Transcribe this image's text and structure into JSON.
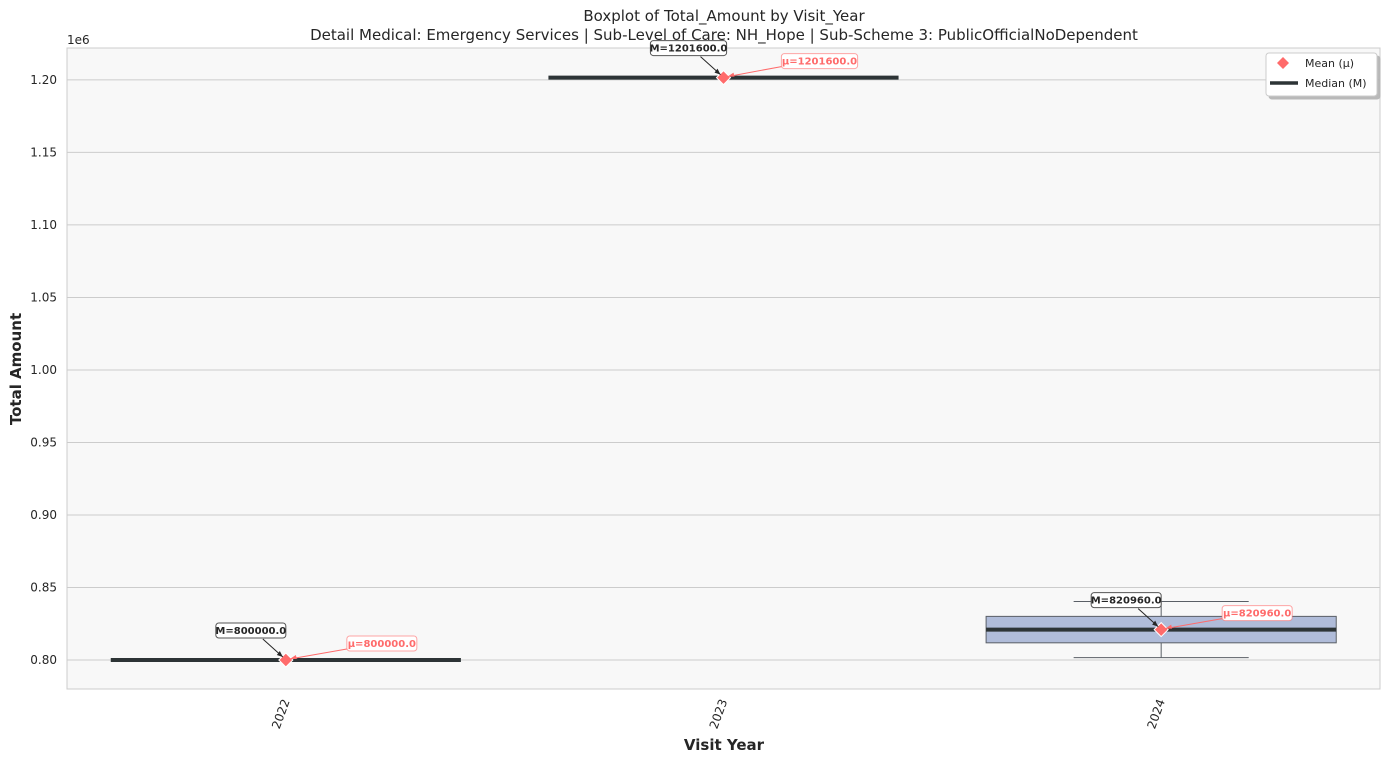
{
  "chart_data": {
    "type": "box",
    "title": "Boxplot of Total_Amount by Visit_Year",
    "subtitle": "Detail Medical: Emergency Services | Sub-Level of Care: NH_Hope | Sub-Scheme 3: PublicOfficialNoDependent",
    "xlabel": "Visit Year",
    "ylabel": "Total Amount",
    "y_offset_label": "1e6",
    "ylim": [
      0.78,
      1.222
    ],
    "yticks": [
      0.8,
      0.85,
      0.9,
      0.95,
      1.0,
      1.05,
      1.1,
      1.15,
      1.2
    ],
    "ytick_labels": [
      "0.80",
      "0.85",
      "0.90",
      "0.95",
      "1.00",
      "1.05",
      "1.10",
      "1.15",
      "1.20"
    ],
    "categories": [
      "2022",
      "2023",
      "2024"
    ],
    "boxes": [
      {
        "category": "2022",
        "whisker_low": 0.8,
        "q1": 0.8,
        "median": 0.8,
        "q3": 0.8,
        "whisker_high": 0.8,
        "mean": 0.8,
        "median_label": "M=800000.0",
        "mean_label": "μ=800000.0"
      },
      {
        "category": "2023",
        "whisker_low": 1.2016,
        "q1": 1.2016,
        "median": 1.2016,
        "q3": 1.2016,
        "whisker_high": 1.2016,
        "mean": 1.2016,
        "median_label": "M=1201600.0",
        "mean_label": "μ=1201600.0"
      },
      {
        "category": "2024",
        "whisker_low": 0.8016,
        "q1": 0.81184,
        "median": 0.82096,
        "q3": 0.83008,
        "whisker_high": 0.84032,
        "mean": 0.82096,
        "median_label": "M=820960.0",
        "mean_label": "μ=820960.0"
      }
    ],
    "legend": {
      "position": "top-right",
      "items": [
        {
          "label": "Mean (μ)",
          "marker": "diamond",
          "color": "#ff6b6b"
        },
        {
          "label": "Median (M)",
          "marker": "line",
          "color": "#2d3436"
        }
      ]
    },
    "colors": {
      "box_fill": "#b0bcd9",
      "box_edge": "#5a5f66",
      "median": "#2d3436",
      "mean": "#ff6b6b",
      "plot_bg": "#f8f8f8",
      "grid": "#cccccc"
    },
    "grid": "horizontal"
  }
}
